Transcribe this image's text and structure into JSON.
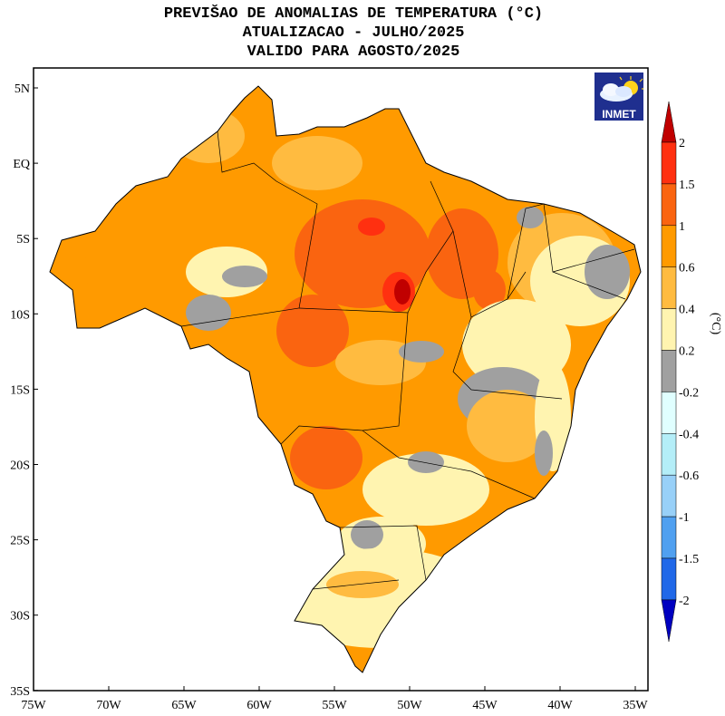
{
  "title": {
    "line1": "PREVIŠAO DE ANOMALIAS DE TEMPERATURA (°C)",
    "line2": "ATUALIZACAO - JULHO/2025",
    "line3": "VALIDO PARA AGOSTO/2025"
  },
  "logo": {
    "text": "INMET",
    "icon": "cloud-sun-icon",
    "background": "#1f2f8f"
  },
  "axes": {
    "lat_labels": [
      "5N",
      "EQ",
      "5S",
      "10S",
      "15S",
      "20S",
      "25S",
      "30S",
      "35S"
    ],
    "lon_labels": [
      "75W",
      "70W",
      "65W",
      "60W",
      "55W",
      "50W",
      "45W",
      "40W",
      "35W"
    ]
  },
  "colorbar": {
    "unit": "(°C)",
    "labels": [
      "2",
      "1.5",
      "1",
      "0.6",
      "0.4",
      "0.2",
      "-0.2",
      "-0.4",
      "-0.6",
      "-1",
      "-1.5",
      "-2"
    ],
    "over_color": "#c00000",
    "colors": [
      "#ff3010",
      "#fa6410",
      "#ff9a00",
      "#ffbb40",
      "#fff4b0",
      "#a0a0a0",
      "#e0ffff",
      "#b4eef8",
      "#98d0f8",
      "#50a0f0",
      "#2068e8"
    ],
    "under_color": "#0000c0"
  }
}
